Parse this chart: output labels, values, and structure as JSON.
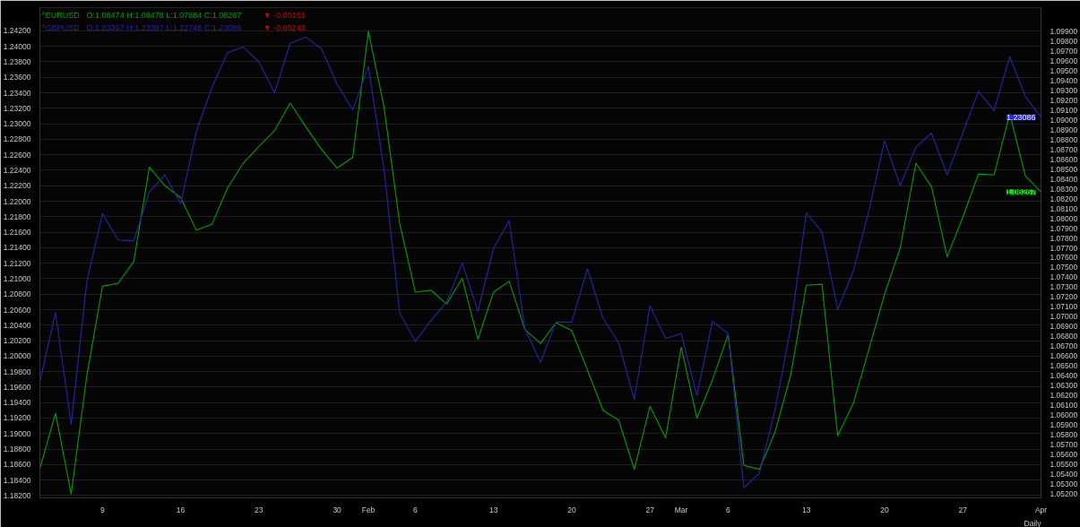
{
  "chart_data": {
    "type": "line",
    "line_style": "solid",
    "grid": "y",
    "categories": [
      null,
      null,
      null,
      null,
      "9",
      null,
      null,
      null,
      null,
      "16",
      null,
      null,
      null,
      null,
      "23",
      null,
      null,
      null,
      null,
      "30",
      null,
      "Feb",
      null,
      null,
      "6",
      null,
      null,
      null,
      null,
      "13",
      null,
      null,
      null,
      null,
      "20",
      null,
      null,
      null,
      null,
      "27",
      null,
      "Mar",
      null,
      null,
      "6",
      null,
      null,
      null,
      null,
      "13",
      null,
      null,
      null,
      null,
      "20",
      null,
      null,
      null,
      null,
      "27",
      null,
      null,
      null,
      null,
      "Apr"
    ],
    "series": [
      {
        "name": "^EURUSD",
        "color": "#00a000",
        "axis": "y2",
        "values": [
          1.0546,
          1.0602,
          1.052,
          1.064,
          1.0731,
          1.0734,
          1.0756,
          1.0852,
          1.0833,
          1.0821,
          1.0788,
          1.0794,
          1.0831,
          1.0856,
          1.0873,
          1.0889,
          1.0917,
          1.0893,
          1.087,
          1.0851,
          1.0862,
          1.099,
          1.0913,
          1.0795,
          1.0725,
          1.0727,
          1.0713,
          1.0739,
          1.0677,
          1.0725,
          1.0736,
          1.0687,
          1.0673,
          1.0694,
          1.0686,
          1.0646,
          1.0605,
          1.0595,
          1.0545,
          1.0609,
          1.0577,
          1.0669,
          1.0597,
          1.0636,
          1.0682,
          1.0549,
          1.0545,
          1.0583,
          1.0641,
          1.0732,
          1.0733,
          1.0579,
          1.0612,
          1.0667,
          1.0723,
          1.077,
          1.0856,
          1.0832,
          1.0761,
          1.0801,
          1.0845,
          1.0844,
          1.0906,
          1.0843,
          1.08267
        ],
        "value_labels": [
          null,
          null,
          null,
          null,
          null,
          null,
          null,
          null,
          null,
          null,
          null,
          null,
          null,
          null,
          null,
          null,
          null,
          null,
          null,
          null,
          null,
          null,
          null,
          null,
          null,
          null,
          null,
          null,
          null,
          null,
          null,
          null,
          null,
          null,
          null,
          null,
          null,
          null,
          null,
          null,
          null,
          null,
          null,
          null,
          null,
          null,
          null,
          null,
          null,
          null,
          null,
          null,
          null,
          null,
          null,
          null,
          null,
          null,
          null,
          null,
          null,
          null,
          null,
          null,
          "1.08267"
        ]
      },
      {
        "name": "^GBPUSD",
        "color": "#2626a8",
        "values": [
          1.1967,
          1.2056,
          1.1912,
          1.2096,
          1.2184,
          1.215,
          1.2149,
          1.2212,
          1.2234,
          1.2197,
          1.229,
          1.2347,
          1.2392,
          1.2399,
          1.238,
          1.234,
          1.2404,
          1.2412,
          1.2397,
          1.2351,
          1.2318,
          1.2374,
          1.2241,
          1.2056,
          1.2019,
          1.2046,
          1.207,
          1.212,
          1.2058,
          1.2139,
          1.2175,
          1.2036,
          1.1992,
          1.2044,
          1.2044,
          1.2113,
          1.2049,
          1.2017,
          1.1944,
          1.2065,
          1.2023,
          1.2029,
          1.1949,
          1.2045,
          1.2029,
          1.183,
          1.1849,
          1.1931,
          1.2037,
          1.2185,
          1.216,
          1.206,
          1.211,
          1.2188,
          1.2278,
          1.222,
          1.227,
          1.2288,
          1.2234,
          1.2288,
          1.2342,
          1.2317,
          1.2387,
          1.2335,
          1.23086
        ],
        "value_labels": [
          null,
          null,
          null,
          null,
          null,
          null,
          null,
          null,
          null,
          null,
          null,
          null,
          null,
          null,
          null,
          null,
          null,
          null,
          null,
          null,
          null,
          null,
          null,
          null,
          null,
          null,
          null,
          null,
          null,
          null,
          null,
          null,
          null,
          null,
          null,
          null,
          null,
          null,
          null,
          null,
          null,
          null,
          null,
          null,
          null,
          null,
          null,
          null,
          null,
          null,
          null,
          null,
          null,
          null,
          null,
          null,
          null,
          null,
          null,
          null,
          null,
          null,
          null,
          null,
          "1.23086"
        ]
      }
    ],
    "ylim": [
      1.1817,
      1.245
    ],
    "yticks": [
      {
        "value": 1.182,
        "label": "1.18200"
      },
      {
        "value": 1.184,
        "label": "1.18400"
      },
      {
        "value": 1.186,
        "label": "1.18600"
      },
      {
        "value": 1.188,
        "label": "1.18800"
      },
      {
        "value": 1.19,
        "label": "1.19000"
      },
      {
        "value": 1.192,
        "label": "1.19200"
      },
      {
        "value": 1.194,
        "label": "1.19400"
      },
      {
        "value": 1.196,
        "label": "1.19600"
      },
      {
        "value": 1.198,
        "label": "1.19800"
      },
      {
        "value": 1.2,
        "label": "1.20000"
      },
      {
        "value": 1.202,
        "label": "1.20200"
      },
      {
        "value": 1.204,
        "label": "1.20400"
      },
      {
        "value": 1.206,
        "label": "1.20600"
      },
      {
        "value": 1.208,
        "label": "1.20800"
      },
      {
        "value": 1.21,
        "label": "1.21000"
      },
      {
        "value": 1.212,
        "label": "1.21200"
      },
      {
        "value": 1.214,
        "label": "1.21400"
      },
      {
        "value": 1.216,
        "label": "1.21600"
      },
      {
        "value": 1.218,
        "label": "1.21800"
      },
      {
        "value": 1.22,
        "label": "1.22000"
      },
      {
        "value": 1.222,
        "label": "1.22200"
      },
      {
        "value": 1.224,
        "label": "1.22400"
      },
      {
        "value": 1.226,
        "label": "1.22600"
      },
      {
        "value": 1.228,
        "label": "1.22800"
      },
      {
        "value": 1.23,
        "label": "1.23000"
      },
      {
        "value": 1.232,
        "label": "1.23200"
      },
      {
        "value": 1.234,
        "label": "1.23400"
      },
      {
        "value": 1.236,
        "label": "1.23600"
      },
      {
        "value": 1.238,
        "label": "1.23800"
      },
      {
        "value": 1.24,
        "label": "1.24000"
      },
      {
        "value": 1.242,
        "label": "1.24200"
      }
    ],
    "y2lim": [
      1.0516,
      1.1014
    ],
    "y2ticks": [
      {
        "value": 1.052,
        "label": "1.05200"
      },
      {
        "value": 1.053,
        "label": "1.05300"
      },
      {
        "value": 1.054,
        "label": "1.05400"
      },
      {
        "value": 1.055,
        "label": "1.05500"
      },
      {
        "value": 1.056,
        "label": "1.05600"
      },
      {
        "value": 1.057,
        "label": "1.05700"
      },
      {
        "value": 1.058,
        "label": "1.05800"
      },
      {
        "value": 1.059,
        "label": "1.05900"
      },
      {
        "value": 1.06,
        "label": "1.06000"
      },
      {
        "value": 1.061,
        "label": "1.06100"
      },
      {
        "value": 1.062,
        "label": "1.06200"
      },
      {
        "value": 1.063,
        "label": "1.06300"
      },
      {
        "value": 1.064,
        "label": "1.06400"
      },
      {
        "value": 1.065,
        "label": "1.06500"
      },
      {
        "value": 1.066,
        "label": "1.06600"
      },
      {
        "value": 1.067,
        "label": "1.06700"
      },
      {
        "value": 1.068,
        "label": "1.06800"
      },
      {
        "value": 1.069,
        "label": "1.06900"
      },
      {
        "value": 1.07,
        "label": "1.07000"
      },
      {
        "value": 1.071,
        "label": "1.07100"
      },
      {
        "value": 1.072,
        "label": "1.07200"
      },
      {
        "value": 1.073,
        "label": "1.07300"
      },
      {
        "value": 1.074,
        "label": "1.07400"
      },
      {
        "value": 1.075,
        "label": "1.07500"
      },
      {
        "value": 1.076,
        "label": "1.07600"
      },
      {
        "value": 1.077,
        "label": "1.07700"
      },
      {
        "value": 1.078,
        "label": "1.07800"
      },
      {
        "value": 1.079,
        "label": "1.07900"
      },
      {
        "value": 1.08,
        "label": "1.08000"
      },
      {
        "value": 1.081,
        "label": "1.08100"
      },
      {
        "value": 1.082,
        "label": "1.08200"
      },
      {
        "value": 1.083,
        "label": "1.08300"
      },
      {
        "value": 1.084,
        "label": "1.08400"
      },
      {
        "value": 1.085,
        "label": "1.08500"
      },
      {
        "value": 1.086,
        "label": "1.08600"
      },
      {
        "value": 1.087,
        "label": "1.08700"
      },
      {
        "value": 1.088,
        "label": "1.08800"
      },
      {
        "value": 1.089,
        "label": "1.08900"
      },
      {
        "value": 1.09,
        "label": "1.09000"
      },
      {
        "value": 1.091,
        "label": "1.09100"
      },
      {
        "value": 1.092,
        "label": "1.09200"
      },
      {
        "value": 1.093,
        "label": "1.09300"
      },
      {
        "value": 1.094,
        "label": "1.09400"
      },
      {
        "value": 1.095,
        "label": "1.09500"
      },
      {
        "value": 1.096,
        "label": "1.09600"
      },
      {
        "value": 1.097,
        "label": "1.09700"
      },
      {
        "value": 1.098,
        "label": "1.09800"
      },
      {
        "value": 1.099,
        "label": "1.09900"
      }
    ],
    "annotations": [
      "O:1.08474 H:1.08478 L:1.07884 C:1.08267",
      "▼ -0.00151",
      "O:1.23367 H:1.23367 L:1.22746 C:1.23086",
      "▼ -0.00243",
      "Daily"
    ]
  }
}
